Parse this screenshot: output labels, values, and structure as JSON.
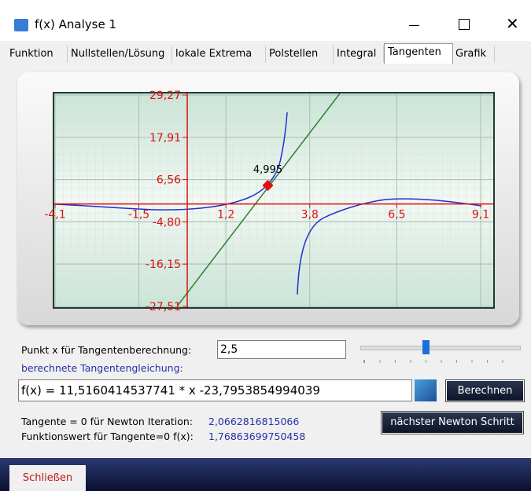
{
  "window": {
    "title": "f(x) Analyse 1"
  },
  "tabs": [
    "Funktion",
    "Nullstellen/Lösung",
    "lokale Extrema",
    "Polstellen",
    "Integral",
    "Tangenten",
    "Grafik"
  ],
  "chart": {
    "type": "line",
    "xlim": [
      -4.1,
      9.1
    ],
    "ylim": [
      -27.51,
      29.27
    ],
    "xticks": [
      {
        "value": -4.1,
        "label": "-4,1"
      },
      {
        "value": -1.5,
        "label": "-1,5"
      },
      {
        "value": 1.2,
        "label": "1,2"
      },
      {
        "value": 3.8,
        "label": "3,8"
      },
      {
        "value": 6.5,
        "label": "6,5"
      },
      {
        "value": 9.1,
        "label": "9,1"
      }
    ],
    "yticks": [
      {
        "value": 29.27,
        "label": "29,27"
      },
      {
        "value": 17.91,
        "label": "17,91"
      },
      {
        "value": 6.56,
        "label": "6,56"
      },
      {
        "value": -4.8,
        "label": "-4,80"
      },
      {
        "value": -16.15,
        "label": "-16,15"
      },
      {
        "value": -27.51,
        "label": "-27,51"
      }
    ],
    "point": {
      "x": 2.5,
      "y": 4.995,
      "value_label": "4,995"
    },
    "grid": true
  },
  "form": {
    "point_label": "Punkt x für Tangentenberechnung:",
    "point_value": "2,5",
    "equation_label": "berechnete Tangentengleichung:",
    "equation": "f(x) = 11,5160414537741 * x -23,7953854994039",
    "compute_button": "Berechnen",
    "newton_label": "Tangente = 0 für Newton Iteration:",
    "newton_value": "2,0662816815066",
    "fvalue_label": "Funktionswert für Tangente=0 f(x):",
    "fvalue_value": "1,76863699750458",
    "next_button": "nächster Newton Schritt"
  },
  "close_button": "Schließen"
}
